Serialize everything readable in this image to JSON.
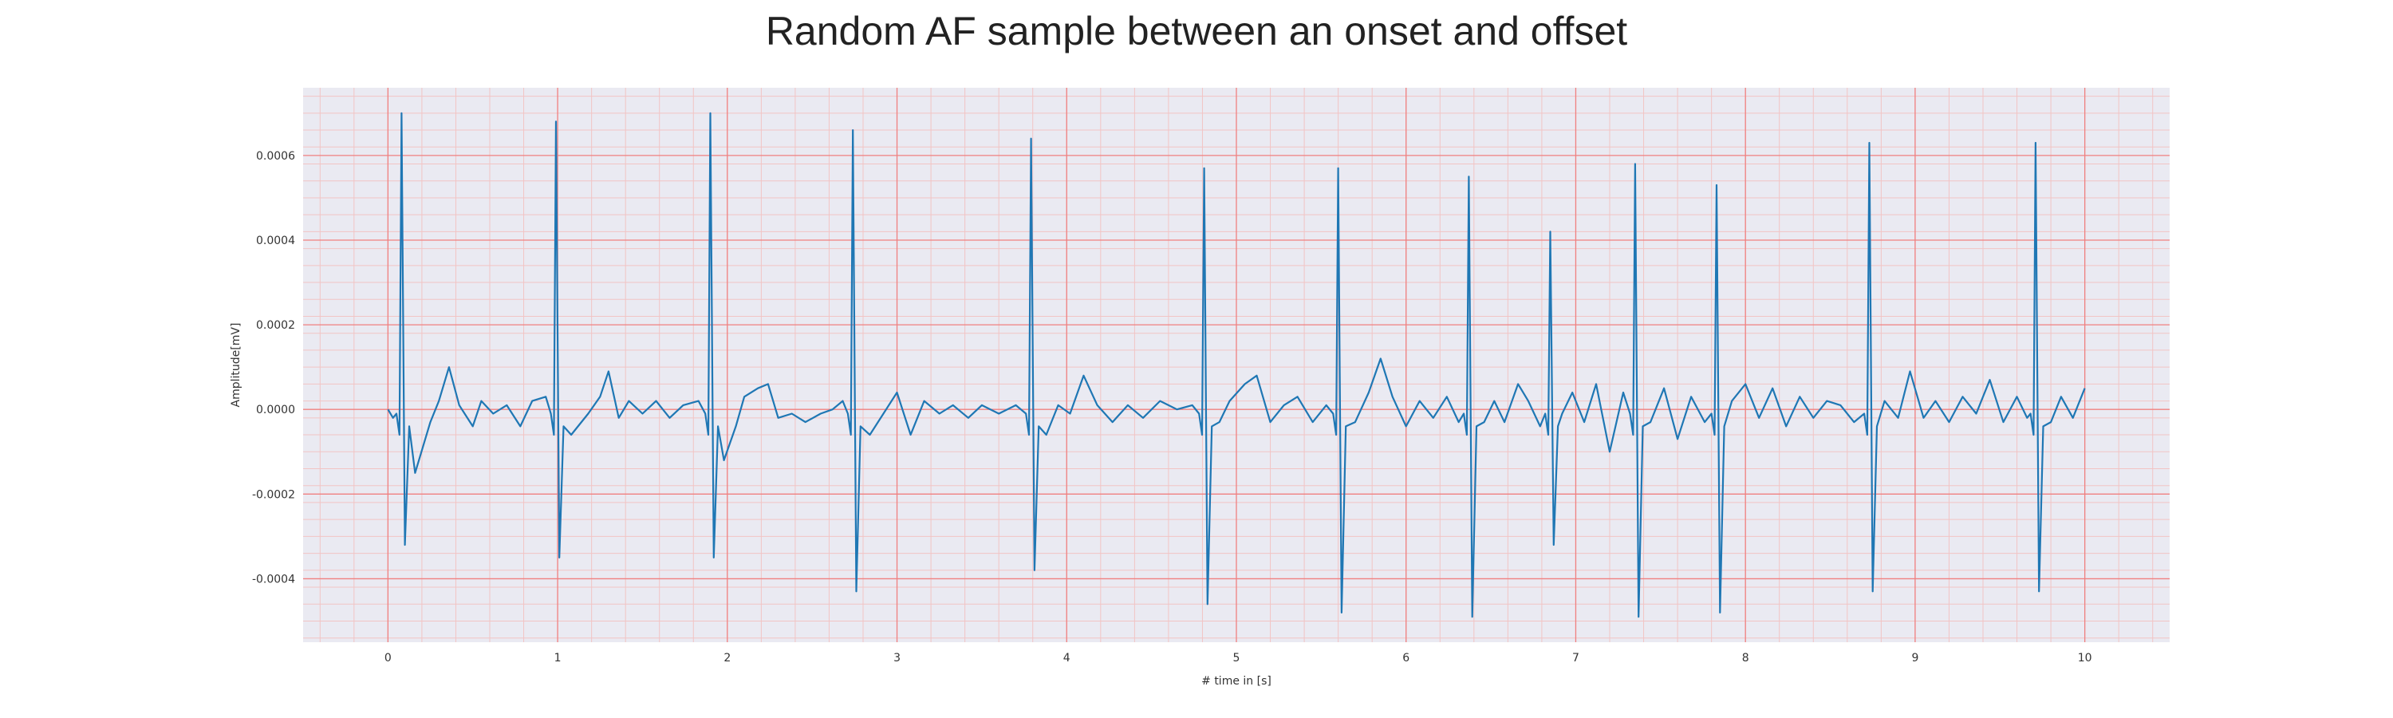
{
  "chart_data": {
    "type": "line",
    "title": "Random AF sample between an onset and offset",
    "xlabel": "# time in [s]",
    "ylabel": "Amplitude[mV]",
    "xlim": [
      -0.5,
      10.5
    ],
    "ylim": [
      -0.00055,
      0.00076
    ],
    "xticks": [
      0,
      1,
      2,
      3,
      4,
      5,
      6,
      7,
      8,
      9,
      10
    ],
    "yticks": [
      -0.0004,
      -0.0002,
      0.0,
      0.0002,
      0.0004,
      0.0006
    ],
    "ytick_labels": [
      "-0.0004",
      "-0.0002",
      "0.0000",
      "0.0002",
      "0.0004",
      "0.0006"
    ],
    "grid": true,
    "colors": {
      "line": "#1f77b4",
      "background": "#eaeaf2",
      "major_grid": "#f08080",
      "minor_grid": "#f2c4c4"
    },
    "beats": [
      {
        "t": 0.08,
        "peak": 0.0007,
        "trough": -0.00032
      },
      {
        "t": 0.99,
        "peak": 0.00068,
        "trough": -0.00035
      },
      {
        "t": 1.9,
        "peak": 0.0007,
        "trough": -0.00035
      },
      {
        "t": 2.74,
        "peak": 0.00066,
        "trough": -0.00043
      },
      {
        "t": 3.79,
        "peak": 0.00064,
        "trough": -0.00038
      },
      {
        "t": 4.81,
        "peak": 0.00057,
        "trough": -0.00046
      },
      {
        "t": 5.6,
        "peak": 0.00057,
        "trough": -0.00048
      },
      {
        "t": 6.37,
        "peak": 0.00055,
        "trough": -0.00049
      },
      {
        "t": 6.85,
        "peak": 0.00042,
        "trough": -0.00032
      },
      {
        "t": 7.35,
        "peak": 0.00058,
        "trough": -0.00049
      },
      {
        "t": 7.83,
        "peak": 0.00053,
        "trough": -0.00048
      },
      {
        "t": 8.73,
        "peak": 0.00063,
        "trough": -0.00043
      },
      {
        "t": 9.71,
        "peak": 0.00063,
        "trough": -0.00043
      }
    ],
    "baseline_points": [
      [
        0.0,
        0.0
      ],
      [
        0.03,
        -2e-05
      ],
      [
        0.16,
        -0.00015
      ],
      [
        0.25,
        -3e-05
      ],
      [
        0.3,
        2e-05
      ],
      [
        0.36,
        0.0001
      ],
      [
        0.42,
        1e-05
      ],
      [
        0.5,
        -4e-05
      ],
      [
        0.55,
        2e-05
      ],
      [
        0.62,
        -1e-05
      ],
      [
        0.7,
        1e-05
      ],
      [
        0.78,
        -4e-05
      ],
      [
        0.85,
        2e-05
      ],
      [
        0.93,
        3e-05
      ],
      [
        1.08,
        -6e-05
      ],
      [
        1.18,
        -1e-05
      ],
      [
        1.25,
        3e-05
      ],
      [
        1.3,
        9e-05
      ],
      [
        1.36,
        -2e-05
      ],
      [
        1.42,
        2e-05
      ],
      [
        1.5,
        -1e-05
      ],
      [
        1.58,
        2e-05
      ],
      [
        1.66,
        -2e-05
      ],
      [
        1.74,
        1e-05
      ],
      [
        1.83,
        2e-05
      ],
      [
        1.98,
        -0.00012
      ],
      [
        2.05,
        -4e-05
      ],
      [
        2.1,
        3e-05
      ],
      [
        2.18,
        5e-05
      ],
      [
        2.24,
        6e-05
      ],
      [
        2.3,
        -2e-05
      ],
      [
        2.38,
        -1e-05
      ],
      [
        2.46,
        -3e-05
      ],
      [
        2.55,
        -1e-05
      ],
      [
        2.62,
        0.0
      ],
      [
        2.68,
        2e-05
      ],
      [
        2.84,
        -6e-05
      ],
      [
        2.92,
        -1e-05
      ],
      [
        3.0,
        4e-05
      ],
      [
        3.08,
        -6e-05
      ],
      [
        3.16,
        2e-05
      ],
      [
        3.25,
        -1e-05
      ],
      [
        3.33,
        1e-05
      ],
      [
        3.42,
        -2e-05
      ],
      [
        3.5,
        1e-05
      ],
      [
        3.6,
        -1e-05
      ],
      [
        3.7,
        1e-05
      ],
      [
        3.88,
        -6e-05
      ],
      [
        3.95,
        1e-05
      ],
      [
        4.02,
        -1e-05
      ],
      [
        4.1,
        8e-05
      ],
      [
        4.18,
        1e-05
      ],
      [
        4.27,
        -3e-05
      ],
      [
        4.36,
        1e-05
      ],
      [
        4.45,
        -2e-05
      ],
      [
        4.55,
        2e-05
      ],
      [
        4.65,
        0.0
      ],
      [
        4.74,
        1e-05
      ],
      [
        4.9,
        -3e-05
      ],
      [
        4.96,
        2e-05
      ],
      [
        5.05,
        6e-05
      ],
      [
        5.12,
        8e-05
      ],
      [
        5.2,
        -3e-05
      ],
      [
        5.28,
        1e-05
      ],
      [
        5.36,
        3e-05
      ],
      [
        5.45,
        -3e-05
      ],
      [
        5.53,
        1e-05
      ],
      [
        5.7,
        -3e-05
      ],
      [
        5.78,
        4e-05
      ],
      [
        5.85,
        0.00012
      ],
      [
        5.92,
        3e-05
      ],
      [
        6.0,
        -4e-05
      ],
      [
        6.08,
        2e-05
      ],
      [
        6.16,
        -2e-05
      ],
      [
        6.24,
        3e-05
      ],
      [
        6.31,
        -3e-05
      ],
      [
        6.46,
        -3e-05
      ],
      [
        6.52,
        2e-05
      ],
      [
        6.58,
        -3e-05
      ],
      [
        6.66,
        6e-05
      ],
      [
        6.72,
        2e-05
      ],
      [
        6.79,
        -4e-05
      ],
      [
        6.92,
        -1e-05
      ],
      [
        6.98,
        4e-05
      ],
      [
        7.05,
        -3e-05
      ],
      [
        7.12,
        6e-05
      ],
      [
        7.2,
        -0.0001
      ],
      [
        7.28,
        4e-05
      ],
      [
        7.44,
        -3e-05
      ],
      [
        7.52,
        5e-05
      ],
      [
        7.6,
        -7e-05
      ],
      [
        7.68,
        3e-05
      ],
      [
        7.76,
        -3e-05
      ],
      [
        7.92,
        2e-05
      ],
      [
        8.0,
        6e-05
      ],
      [
        8.08,
        -2e-05
      ],
      [
        8.16,
        5e-05
      ],
      [
        8.24,
        -4e-05
      ],
      [
        8.32,
        3e-05
      ],
      [
        8.4,
        -2e-05
      ],
      [
        8.48,
        2e-05
      ],
      [
        8.56,
        1e-05
      ],
      [
        8.64,
        -3e-05
      ],
      [
        8.82,
        2e-05
      ],
      [
        8.9,
        -2e-05
      ],
      [
        8.97,
        9e-05
      ],
      [
        9.05,
        -2e-05
      ],
      [
        9.12,
        2e-05
      ],
      [
        9.2,
        -3e-05
      ],
      [
        9.28,
        3e-05
      ],
      [
        9.36,
        -1e-05
      ],
      [
        9.44,
        7e-05
      ],
      [
        9.52,
        -3e-05
      ],
      [
        9.6,
        3e-05
      ],
      [
        9.66,
        -2e-05
      ],
      [
        9.8,
        -3e-05
      ],
      [
        9.86,
        3e-05
      ],
      [
        9.93,
        -2e-05
      ],
      [
        10.0,
        5e-05
      ]
    ]
  }
}
